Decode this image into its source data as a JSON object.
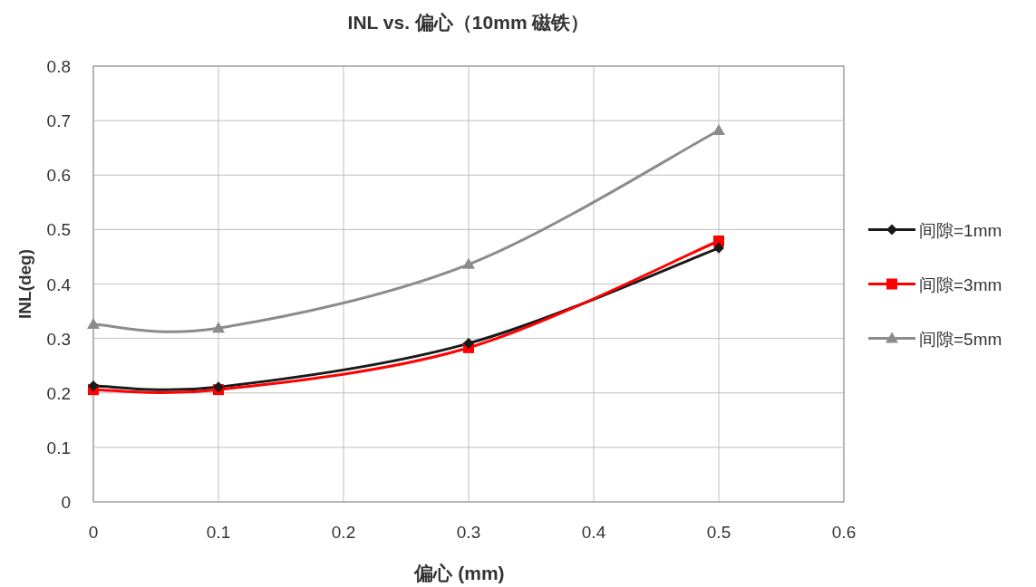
{
  "chart_data": {
    "type": "line",
    "title": "INL vs. 偏心（10mm 磁铁）",
    "xlabel": "偏心 (mm)",
    "ylabel": "INL(deg)",
    "x": [
      0,
      0.1,
      0.3,
      0.5
    ],
    "series": [
      {
        "name": "间隙=1mm",
        "color": "#1a1a1a",
        "marker": "diamond",
        "values": [
          0.213,
          0.211,
          0.291,
          0.466
        ]
      },
      {
        "name": "间隙=3mm",
        "color": "#ff0000",
        "marker": "square",
        "values": [
          0.206,
          0.206,
          0.283,
          0.479
        ]
      },
      {
        "name": "间隙=5mm",
        "color": "#8c8c8c",
        "marker": "triangle",
        "values": [
          0.326,
          0.319,
          0.436,
          0.682
        ]
      }
    ],
    "xlim": [
      0,
      0.6
    ],
    "xticks": [
      0,
      0.1,
      0.2,
      0.3,
      0.4,
      0.5,
      0.6
    ],
    "ylim": [
      0,
      0.8
    ],
    "yticks": [
      0,
      0.1,
      0.2,
      0.3,
      0.4,
      0.5,
      0.6,
      0.7,
      0.8
    ],
    "grid": true,
    "legend": "right",
    "line_style": "solid"
  }
}
